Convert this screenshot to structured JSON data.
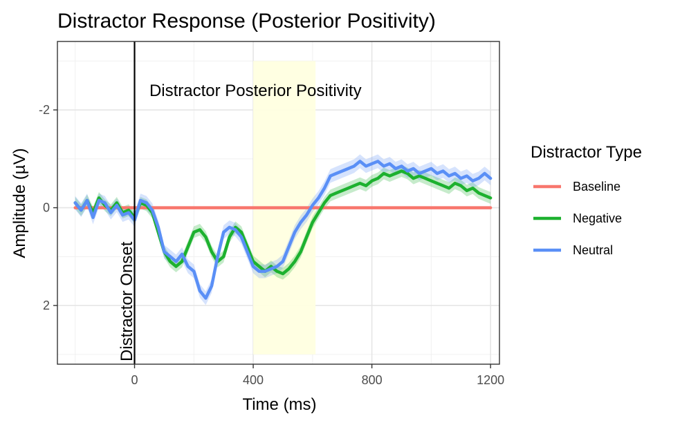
{
  "chart_data": {
    "type": "line",
    "title": "Distractor Response (Posterior Positivity)",
    "xlabel": "Time (ms)",
    "ylabel": "Amplitude (µV)",
    "xlim": [
      -260,
      1230
    ],
    "ylim": [
      3.2,
      -3.4
    ],
    "y_reversed": true,
    "x_ticks": [
      0,
      400,
      800,
      1200
    ],
    "y_ticks": [
      -2,
      0,
      2
    ],
    "y_tick_labels": [
      "-2",
      "0",
      "2"
    ],
    "x_tick_labels": [
      "0",
      "400",
      "800",
      "1200"
    ],
    "grid": true,
    "legend": {
      "title": "Distractor Type",
      "position": "right"
    },
    "highlight_window": {
      "x": [
        400,
        610
      ],
      "y": [
        3.0,
        -3.0
      ],
      "color": "#ffffe0"
    },
    "annotations": [
      {
        "text": "Distractor Posterior Positivity",
        "x": 50,
        "y": -2.4
      },
      {
        "text": "Distractor Onset",
        "x": -20,
        "y": 0.3,
        "rotation": -90
      }
    ],
    "vline": {
      "x": 0,
      "color": "#000000"
    },
    "series": [
      {
        "name": "Baseline",
        "color": "#f8766d",
        "x": [
          -200,
          1200
        ],
        "y": [
          0,
          0
        ],
        "band": 0
      },
      {
        "name": "Negative",
        "color": "#1db12f",
        "x": [
          -200,
          -180,
          -160,
          -140,
          -120,
          -100,
          -80,
          -60,
          -40,
          -20,
          0,
          20,
          40,
          60,
          80,
          100,
          120,
          140,
          160,
          180,
          200,
          220,
          240,
          260,
          280,
          300,
          320,
          340,
          360,
          380,
          400,
          420,
          440,
          460,
          480,
          500,
          520,
          540,
          560,
          580,
          600,
          620,
          640,
          660,
          680,
          700,
          720,
          740,
          760,
          780,
          800,
          820,
          840,
          860,
          880,
          900,
          920,
          940,
          960,
          980,
          1000,
          1020,
          1040,
          1060,
          1080,
          1100,
          1120,
          1140,
          1160,
          1180,
          1200
        ],
        "y": [
          -0.1,
          0.05,
          -0.15,
          0.1,
          -0.2,
          -0.05,
          0.05,
          -0.1,
          0.1,
          0.05,
          0.2,
          -0.1,
          -0.05,
          0.1,
          0.5,
          0.9,
          1.1,
          1.2,
          1.1,
          0.8,
          0.5,
          0.45,
          0.6,
          0.9,
          1.1,
          1.0,
          0.6,
          0.4,
          0.5,
          0.8,
          1.1,
          1.2,
          1.3,
          1.2,
          1.3,
          1.35,
          1.25,
          1.1,
          0.9,
          0.6,
          0.3,
          0.1,
          -0.1,
          -0.25,
          -0.3,
          -0.35,
          -0.4,
          -0.45,
          -0.5,
          -0.45,
          -0.55,
          -0.6,
          -0.7,
          -0.65,
          -0.7,
          -0.75,
          -0.7,
          -0.6,
          -0.65,
          -0.6,
          -0.55,
          -0.5,
          -0.45,
          -0.4,
          -0.5,
          -0.45,
          -0.35,
          -0.4,
          -0.3,
          -0.25,
          -0.2
        ],
        "band": 0.12
      },
      {
        "name": "Neutral",
        "color": "#5a8ff6",
        "x": [
          -200,
          -180,
          -160,
          -140,
          -120,
          -100,
          -80,
          -60,
          -40,
          -20,
          0,
          20,
          40,
          60,
          80,
          100,
          120,
          140,
          160,
          180,
          200,
          220,
          240,
          260,
          280,
          300,
          320,
          340,
          360,
          380,
          400,
          420,
          440,
          460,
          480,
          500,
          520,
          540,
          560,
          580,
          600,
          620,
          640,
          660,
          680,
          700,
          720,
          740,
          760,
          780,
          800,
          820,
          840,
          860,
          880,
          900,
          920,
          940,
          960,
          980,
          1000,
          1020,
          1040,
          1060,
          1080,
          1100,
          1120,
          1140,
          1160,
          1180,
          1200
        ],
        "y": [
          -0.1,
          0.05,
          -0.15,
          0.2,
          -0.15,
          -0.1,
          0.1,
          -0.05,
          0.15,
          0.1,
          0.25,
          -0.15,
          -0.1,
          0.05,
          0.4,
          0.9,
          1.0,
          1.1,
          0.95,
          1.2,
          1.3,
          1.7,
          1.85,
          1.6,
          1.0,
          0.5,
          0.4,
          0.45,
          0.6,
          0.9,
          1.2,
          1.3,
          1.3,
          1.25,
          1.2,
          1.1,
          0.8,
          0.5,
          0.3,
          0.15,
          -0.05,
          -0.2,
          -0.4,
          -0.65,
          -0.7,
          -0.75,
          -0.8,
          -0.85,
          -0.95,
          -0.85,
          -0.9,
          -0.95,
          -0.85,
          -0.9,
          -0.8,
          -0.85,
          -0.75,
          -0.8,
          -0.7,
          -0.75,
          -0.8,
          -0.7,
          -0.75,
          -0.65,
          -0.7,
          -0.6,
          -0.65,
          -0.55,
          -0.6,
          -0.7,
          -0.6
        ],
        "band": 0.14
      }
    ]
  }
}
